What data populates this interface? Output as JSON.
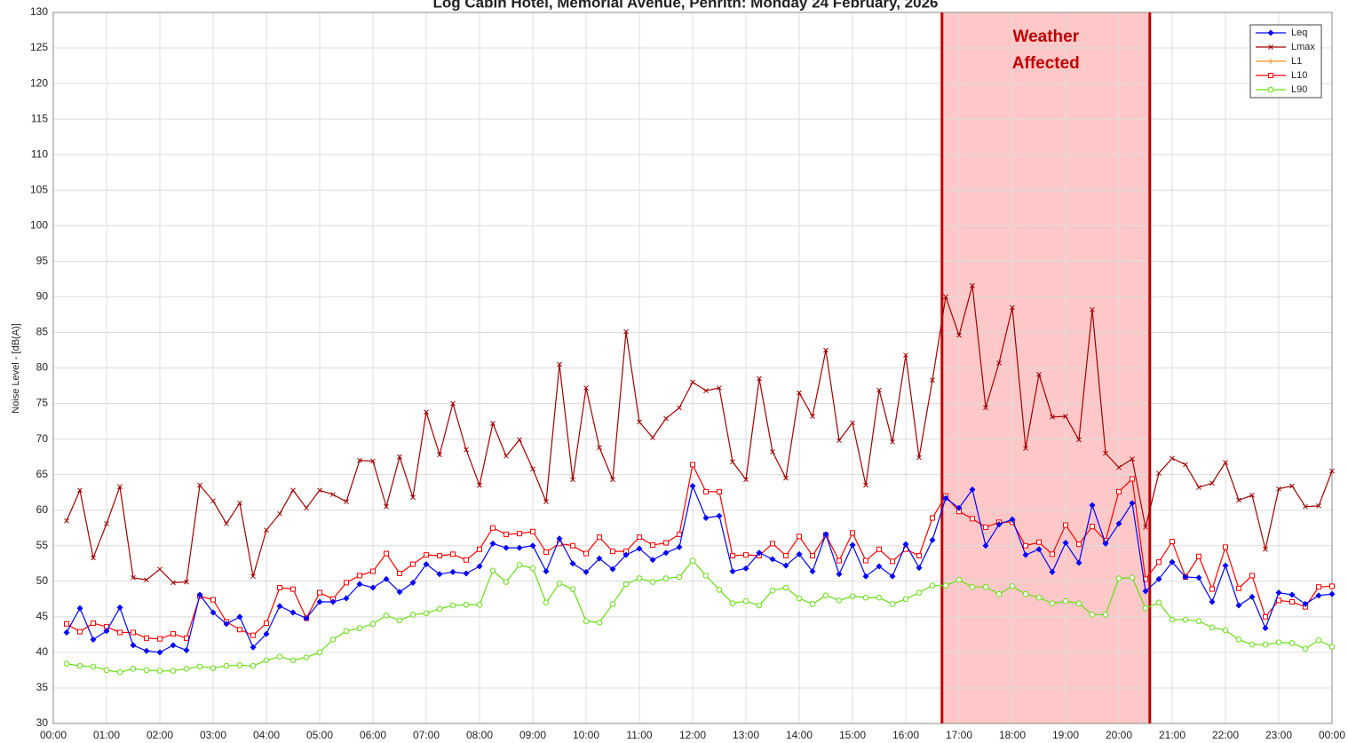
{
  "chart_data": {
    "type": "line",
    "title": "Log Cabin Hotel, Memorial Avenue, Penrith: Monday 24 February, 2026",
    "y_label": "Noise Level - [dB(A)]",
    "annotation": [
      "Weather",
      "Affected"
    ],
    "shaded_region": [
      16.68,
      20.58
    ],
    "shaded_color": "#ffc8c8",
    "shaded_edge_color": "#c00000",
    "grid": true,
    "legend_position": "upper right",
    "xlim": [
      0,
      24
    ],
    "xticks": [
      {
        "value": 0,
        "label": "00:00"
      },
      {
        "value": 1,
        "label": "01:00"
      },
      {
        "value": 2,
        "label": "02:00"
      },
      {
        "value": 3,
        "label": "03:00"
      },
      {
        "value": 4,
        "label": "04:00"
      },
      {
        "value": 5,
        "label": "05:00"
      },
      {
        "value": 6,
        "label": "06:00"
      },
      {
        "value": 7,
        "label": "07:00"
      },
      {
        "value": 8,
        "label": "08:00"
      },
      {
        "value": 9,
        "label": "09:00"
      },
      {
        "value": 10,
        "label": "10:00"
      },
      {
        "value": 11,
        "label": "11:00"
      },
      {
        "value": 12,
        "label": "12:00"
      },
      {
        "value": 13,
        "label": "13:00"
      },
      {
        "value": 14,
        "label": "14:00"
      },
      {
        "value": 15,
        "label": "15:00"
      },
      {
        "value": 16,
        "label": "16:00"
      },
      {
        "value": 17,
        "label": "17:00"
      },
      {
        "value": 18,
        "label": "18:00"
      },
      {
        "value": 19,
        "label": "19:00"
      },
      {
        "value": 20,
        "label": "20:00"
      },
      {
        "value": 21,
        "label": "21:00"
      },
      {
        "value": 22,
        "label": "22:00"
      },
      {
        "value": 23,
        "label": "23:00"
      },
      {
        "value": 24,
        "label": "00:00"
      }
    ],
    "ylim": [
      30,
      130
    ],
    "yticks": [
      30,
      35,
      40,
      45,
      50,
      55,
      60,
      65,
      70,
      75,
      80,
      85,
      90,
      95,
      100,
      105,
      110,
      115,
      120,
      125,
      130
    ],
    "x": [
      0.25,
      0.5,
      0.75,
      1,
      1.25,
      1.5,
      1.75,
      2,
      2.25,
      2.5,
      2.75,
      3,
      3.25,
      3.5,
      3.75,
      4,
      4.25,
      4.5,
      4.75,
      5,
      5.25,
      5.5,
      5.75,
      6,
      6.25,
      6.5,
      6.75,
      7,
      7.25,
      7.5,
      7.75,
      8,
      8.25,
      8.5,
      8.75,
      9,
      9.25,
      9.5,
      9.75,
      10,
      10.25,
      10.5,
      10.75,
      11,
      11.25,
      11.5,
      11.75,
      12,
      12.25,
      12.5,
      12.75,
      13,
      13.25,
      13.5,
      13.75,
      14,
      14.25,
      14.5,
      14.75,
      15,
      15.25,
      15.5,
      15.75,
      16,
      16.25,
      16.5,
      16.75,
      17,
      17.25,
      17.5,
      17.75,
      18,
      18.25,
      18.5,
      18.75,
      19,
      19.25,
      19.5,
      19.75,
      20,
      20.25,
      20.5,
      20.75,
      21,
      21.25,
      21.5,
      21.75,
      22,
      22.25,
      22.5,
      22.75,
      23,
      23.25,
      23.5,
      23.75,
      24
    ],
    "series": [
      {
        "name": "Leq",
        "color": "#0000ff",
        "marker": "diamond",
        "values": [
          42.8,
          46.2,
          41.8,
          43.0,
          46.3,
          41.0,
          40.2,
          40.0,
          41.0,
          40.3,
          48.1,
          45.6,
          44.0,
          45.0,
          40.7,
          42.6,
          46.5,
          45.6,
          44.8,
          47.1,
          47.1,
          47.6,
          49.6,
          49.1,
          50.3,
          48.5,
          49.8,
          52.4,
          51.0,
          51.3,
          51.1,
          52.1,
          55.3,
          54.7,
          54.7,
          55.0,
          51.4,
          56.0,
          52.5,
          51.3,
          53.2,
          51.7,
          53.7,
          54.6,
          53.0,
          54.0,
          54.8,
          63.4,
          58.9,
          59.2,
          51.4,
          51.8,
          54.0,
          53.1,
          52.2,
          53.8,
          51.4,
          56.6,
          51.0,
          55.1,
          50.7,
          52.1,
          50.7,
          55.2,
          51.9,
          55.8,
          61.7,
          60.3,
          62.9,
          55.0,
          58.0,
          58.7,
          53.7,
          54.5,
          51.3,
          55.4,
          52.6,
          60.7,
          55.3,
          58.1,
          61.0,
          48.6,
          50.3,
          52.7,
          50.6,
          50.5,
          47.1,
          52.2,
          46.6,
          47.8,
          43.4,
          48.4,
          48.1,
          46.8,
          48.0,
          48.2
        ]
      },
      {
        "name": "Lmax",
        "color": "#a00000",
        "marker": "cross",
        "values": [
          58.5,
          62.8,
          53.3,
          58.1,
          63.3,
          50.5,
          50.2,
          51.7,
          49.8,
          49.9,
          63.5,
          61.3,
          58.1,
          61.0,
          50.7,
          57.2,
          59.5,
          62.8,
          60.3,
          62.8,
          62.2,
          61.2,
          67.0,
          66.9,
          60.5,
          67.5,
          61.8,
          73.8,
          67.8,
          75.0,
          68.5,
          63.5,
          72.2,
          67.6,
          69.9,
          65.8,
          61.2,
          80.5,
          64.3,
          77.2,
          68.8,
          64.3,
          85.1,
          72.4,
          70.2,
          72.9,
          74.4,
          78.0,
          76.8,
          77.2,
          66.8,
          64.3,
          78.5,
          68.2,
          64.5,
          76.5,
          73.2,
          82.5,
          69.8,
          72.3,
          63.5,
          76.9,
          69.6,
          81.8,
          67.4,
          78.3,
          90.0,
          84.6,
          91.6,
          74.4,
          80.7,
          88.5,
          68.7,
          79.1,
          73.1,
          73.2,
          69.9,
          88.2,
          68.0,
          66.0,
          67.2,
          57.6,
          65.2,
          67.3,
          66.4,
          63.2,
          63.8,
          66.7,
          61.4,
          62.1,
          54.5,
          63.0,
          63.4,
          60.5,
          60.6,
          65.5
        ]
      },
      {
        "name": "L1",
        "color": "#ff8c1a",
        "marker": "star",
        "values": [
          null,
          null,
          null,
          null,
          null,
          null,
          null,
          null,
          null,
          null,
          null,
          null,
          null,
          null,
          null,
          null,
          null,
          null,
          null,
          null,
          null,
          null,
          null,
          null,
          null,
          null,
          null,
          null,
          null,
          null,
          null,
          null,
          null,
          null,
          null,
          null,
          null,
          null,
          null,
          null,
          null,
          null,
          null,
          null,
          null,
          null,
          null,
          null,
          null,
          null,
          null,
          null,
          null,
          null,
          null,
          null,
          null,
          null,
          null,
          null,
          null,
          null,
          null,
          null,
          null,
          null,
          null,
          null,
          null,
          null,
          null,
          null,
          null,
          null,
          null,
          null,
          null,
          null,
          null,
          null,
          null,
          null,
          null,
          null,
          null,
          null,
          null,
          null,
          null,
          null,
          null,
          null,
          null,
          null,
          null,
          null
        ]
      },
      {
        "name": "L10",
        "color": "#ff0000",
        "marker": "square",
        "values": [
          44.0,
          42.9,
          44.1,
          43.6,
          42.8,
          42.8,
          42.0,
          41.9,
          42.6,
          42.0,
          47.9,
          47.4,
          44.3,
          43.2,
          42.4,
          44.1,
          49.1,
          48.9,
          44.8,
          48.4,
          47.5,
          49.8,
          50.8,
          51.4,
          53.9,
          51.1,
          52.4,
          53.7,
          53.6,
          53.8,
          53.0,
          54.5,
          57.5,
          56.6,
          56.7,
          57.0,
          54.1,
          55.3,
          55.0,
          53.9,
          56.2,
          54.2,
          54.2,
          56.2,
          55.1,
          55.4,
          56.6,
          66.4,
          62.6,
          62.6,
          53.6,
          53.7,
          53.6,
          55.3,
          53.6,
          56.3,
          53.6,
          56.5,
          52.9,
          56.8,
          52.9,
          54.5,
          52.8,
          54.5,
          53.6,
          58.9,
          62.0,
          59.8,
          58.8,
          57.6,
          58.3,
          58.3,
          55.0,
          55.5,
          53.8,
          57.9,
          55.2,
          57.7,
          55.7,
          62.6,
          64.4,
          50.3,
          52.7,
          55.6,
          50.6,
          53.5,
          48.9,
          54.8,
          49.0,
          50.8,
          45.0,
          47.3,
          47.1,
          46.4,
          49.2,
          49.3
        ]
      },
      {
        "name": "L90",
        "color": "#66dd11",
        "marker": "circle",
        "values": [
          38.4,
          38.1,
          38.0,
          37.5,
          37.2,
          37.7,
          37.5,
          37.4,
          37.4,
          37.7,
          38.0,
          37.8,
          38.1,
          38.2,
          38.1,
          38.9,
          39.4,
          38.9,
          39.3,
          40.0,
          41.8,
          43.0,
          43.4,
          44.0,
          45.2,
          44.5,
          45.3,
          45.5,
          46.1,
          46.6,
          46.7,
          46.7,
          51.5,
          49.9,
          52.3,
          51.8,
          47.0,
          49.7,
          48.9,
          44.4,
          44.2,
          46.8,
          49.6,
          50.4,
          49.9,
          50.4,
          50.6,
          52.9,
          50.8,
          48.8,
          46.9,
          47.2,
          46.6,
          48.7,
          49.1,
          47.6,
          46.8,
          48.0,
          47.3,
          47.9,
          47.7,
          47.7,
          46.8,
          47.5,
          48.4,
          49.4,
          49.4,
          50.2,
          49.2,
          49.2,
          48.2,
          49.3,
          48.2,
          47.7,
          46.9,
          47.2,
          46.9,
          45.3,
          45.3,
          50.4,
          50.5,
          46.2,
          47.0,
          44.6,
          44.6,
          44.4,
          43.5,
          43.1,
          41.8,
          41.1,
          41.1,
          41.4,
          41.3,
          40.5,
          41.7,
          40.8
        ]
      }
    ]
  }
}
